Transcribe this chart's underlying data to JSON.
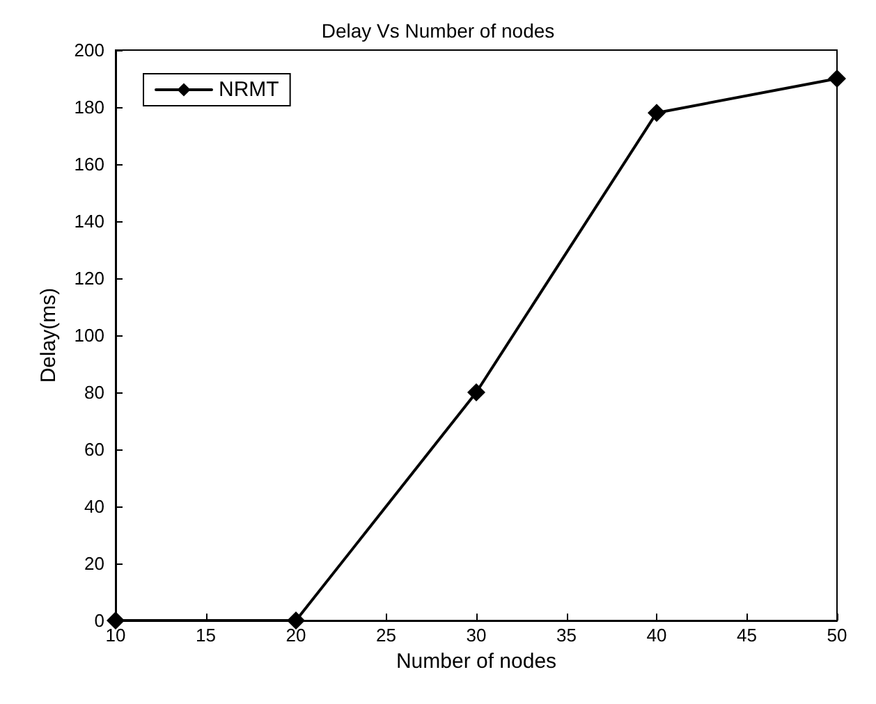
{
  "chart_data": {
    "type": "line",
    "title": "Delay Vs Number of nodes",
    "xlabel": "Number of nodes",
    "ylabel": "Delay(ms)",
    "x": [
      10,
      20,
      30,
      40,
      50
    ],
    "series": [
      {
        "name": "NRMT",
        "color": "#000000",
        "values": [
          0,
          0,
          80,
          178,
          190
        ]
      }
    ],
    "xlim": [
      10,
      50
    ],
    "xticks": [
      10,
      15,
      20,
      25,
      30,
      35,
      40,
      45,
      50
    ],
    "ylim": [
      0,
      200
    ],
    "yticks": [
      0,
      20,
      40,
      60,
      80,
      100,
      120,
      140,
      160,
      180,
      200
    ],
    "grid": false,
    "legend": "top left",
    "marker": "diamond",
    "line_style": "solid"
  }
}
